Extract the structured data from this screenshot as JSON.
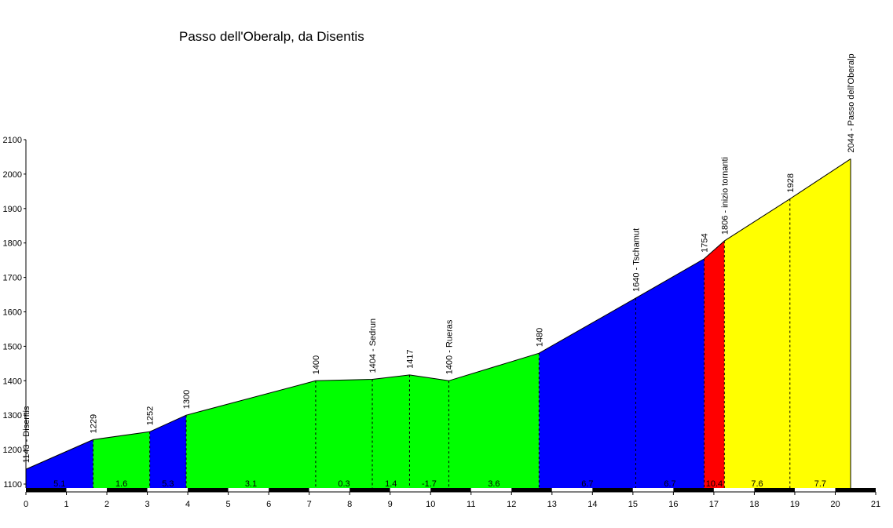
{
  "chart_data": {
    "type": "area",
    "title": "Passo dell'Oberalp, da Disentis",
    "xlabel": "",
    "ylabel": "",
    "xlim": [
      0,
      21
    ],
    "ylim": [
      1100,
      2100
    ],
    "x_ticks": [
      0,
      1,
      2,
      3,
      4,
      5,
      6,
      7,
      8,
      9,
      10,
      11,
      12,
      13,
      14,
      15,
      16,
      17,
      18,
      19,
      20,
      21
    ],
    "y_ticks": [
      1100,
      1200,
      1300,
      1400,
      1500,
      1600,
      1700,
      1800,
      1900,
      2000,
      2100
    ],
    "profile": [
      {
        "km": 0,
        "alt": 1143
      },
      {
        "km": 1.66,
        "alt": 1229
      },
      {
        "km": 3.06,
        "alt": 1252
      },
      {
        "km": 3.96,
        "alt": 1300
      },
      {
        "km": 7.16,
        "alt": 1400
      },
      {
        "km": 8.56,
        "alt": 1404
      },
      {
        "km": 9.48,
        "alt": 1417
      },
      {
        "km": 10.45,
        "alt": 1400
      },
      {
        "km": 12.68,
        "alt": 1480
      },
      {
        "km": 15.07,
        "alt": 1640
      },
      {
        "km": 16.76,
        "alt": 1754
      },
      {
        "km": 17.26,
        "alt": 1806
      },
      {
        "km": 18.88,
        "alt": 1928
      },
      {
        "km": 20.38,
        "alt": 2044
      }
    ],
    "points": [
      {
        "km": 0,
        "alt": 1143,
        "label": "1143 - Disentis"
      },
      {
        "km": 1.66,
        "alt": 1229,
        "label": "1229"
      },
      {
        "km": 3.06,
        "alt": 1252,
        "label": "1252"
      },
      {
        "km": 3.96,
        "alt": 1300,
        "label": "1300"
      },
      {
        "km": 7.16,
        "alt": 1400,
        "label": "1400"
      },
      {
        "km": 8.56,
        "alt": 1404,
        "label": "1404 - Sedrun"
      },
      {
        "km": 9.48,
        "alt": 1417,
        "label": "1417"
      },
      {
        "km": 10.45,
        "alt": 1400,
        "label": "1400 - Rueras"
      },
      {
        "km": 12.68,
        "alt": 1480,
        "label": "1480"
      },
      {
        "km": 15.07,
        "alt": 1640,
        "label": "1640 - Tschamut"
      },
      {
        "km": 16.76,
        "alt": 1754,
        "label": "1754"
      },
      {
        "km": 17.26,
        "alt": 1806,
        "label": "1806 - inizio tornanti"
      },
      {
        "km": 18.88,
        "alt": 1928,
        "label": "1928"
      },
      {
        "km": 20.38,
        "alt": 2044,
        "label": "2044 - Passo dell'Oberalp"
      }
    ],
    "segments": [
      {
        "from_km": 0,
        "to_km": 1.66,
        "gradient": "5.1",
        "color": "#0000ff"
      },
      {
        "from_km": 1.66,
        "to_km": 3.06,
        "gradient": "1.6",
        "color": "#00ff00"
      },
      {
        "from_km": 3.06,
        "to_km": 3.96,
        "gradient": "5.3",
        "color": "#0000ff"
      },
      {
        "from_km": 3.96,
        "to_km": 7.16,
        "gradient": "3.1",
        "color": "#00ff00"
      },
      {
        "from_km": 7.16,
        "to_km": 8.56,
        "gradient": "0.3",
        "color": "#00ff00"
      },
      {
        "from_km": 8.56,
        "to_km": 9.48,
        "gradient": "1.4",
        "color": "#00ff00"
      },
      {
        "from_km": 9.48,
        "to_km": 10.45,
        "gradient": "-1.7",
        "color": "#00ff00"
      },
      {
        "from_km": 10.45,
        "to_km": 12.68,
        "gradient": "3.6",
        "color": "#00ff00"
      },
      {
        "from_km": 12.68,
        "to_km": 15.07,
        "gradient": "6.7",
        "color": "#0000ff"
      },
      {
        "from_km": 15.07,
        "to_km": 16.76,
        "gradient": "6.7",
        "color": "#0000ff"
      },
      {
        "from_km": 16.76,
        "to_km": 17.26,
        "gradient": "10.4",
        "color": "#ff0000"
      },
      {
        "from_km": 17.26,
        "to_km": 18.88,
        "gradient": "7.6",
        "color": "#ffff00"
      },
      {
        "from_km": 18.88,
        "to_km": 20.38,
        "gradient": "7.7",
        "color": "#ffff00"
      }
    ]
  }
}
